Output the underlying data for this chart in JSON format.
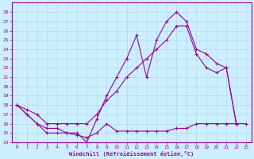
{
  "xlabel": "Windchill (Refroidissement éolien,°C)",
  "bg_color": "#cceeff",
  "line_color": "#990099",
  "grid_color": "#aadddd",
  "xlim": [
    -0.5,
    23.5
  ],
  "ylim": [
    14,
    29
  ],
  "xticks": [
    0,
    1,
    2,
    3,
    4,
    5,
    6,
    7,
    8,
    9,
    10,
    11,
    12,
    13,
    14,
    15,
    16,
    17,
    18,
    19,
    20,
    21,
    22,
    23
  ],
  "yticks": [
    14,
    15,
    16,
    17,
    18,
    19,
    20,
    21,
    22,
    23,
    24,
    25,
    26,
    27,
    28
  ],
  "line1_x": [
    0,
    1,
    2,
    3,
    4,
    5,
    6,
    7,
    8,
    9,
    10,
    11,
    12,
    13,
    14,
    15,
    16,
    17,
    18,
    19,
    20,
    21,
    22
  ],
  "line1_y": [
    18,
    17,
    16,
    15,
    15,
    15,
    15,
    14,
    16.5,
    19,
    21,
    23,
    25.5,
    21,
    25,
    27,
    28,
    27,
    24,
    23.5,
    22.5,
    22,
    16
  ],
  "line2_x": [
    0,
    1,
    2,
    3,
    4,
    5,
    6,
    7,
    8,
    9,
    10,
    11,
    12,
    13,
    14,
    15,
    16,
    17,
    18,
    19,
    20,
    21,
    22,
    23
  ],
  "line2_y": [
    18,
    17,
    16,
    15.5,
    15.5,
    15,
    14.8,
    14.5,
    15,
    16,
    15.2,
    15.2,
    15.2,
    15.2,
    15.2,
    15.2,
    15.5,
    15.5,
    16,
    16,
    16,
    16,
    16,
    16
  ],
  "line3_x": [
    0,
    1,
    2,
    3,
    4,
    5,
    6,
    7,
    8,
    9,
    10,
    11,
    12,
    13,
    14,
    15,
    16,
    17,
    18,
    19,
    20,
    21,
    22
  ],
  "line3_y": [
    18,
    17.5,
    17,
    16,
    16,
    16,
    16,
    16,
    17,
    18.5,
    19.5,
    21,
    22,
    23,
    24,
    25,
    26.5,
    26.5,
    23.5,
    22,
    21.5,
    22,
    16
  ]
}
